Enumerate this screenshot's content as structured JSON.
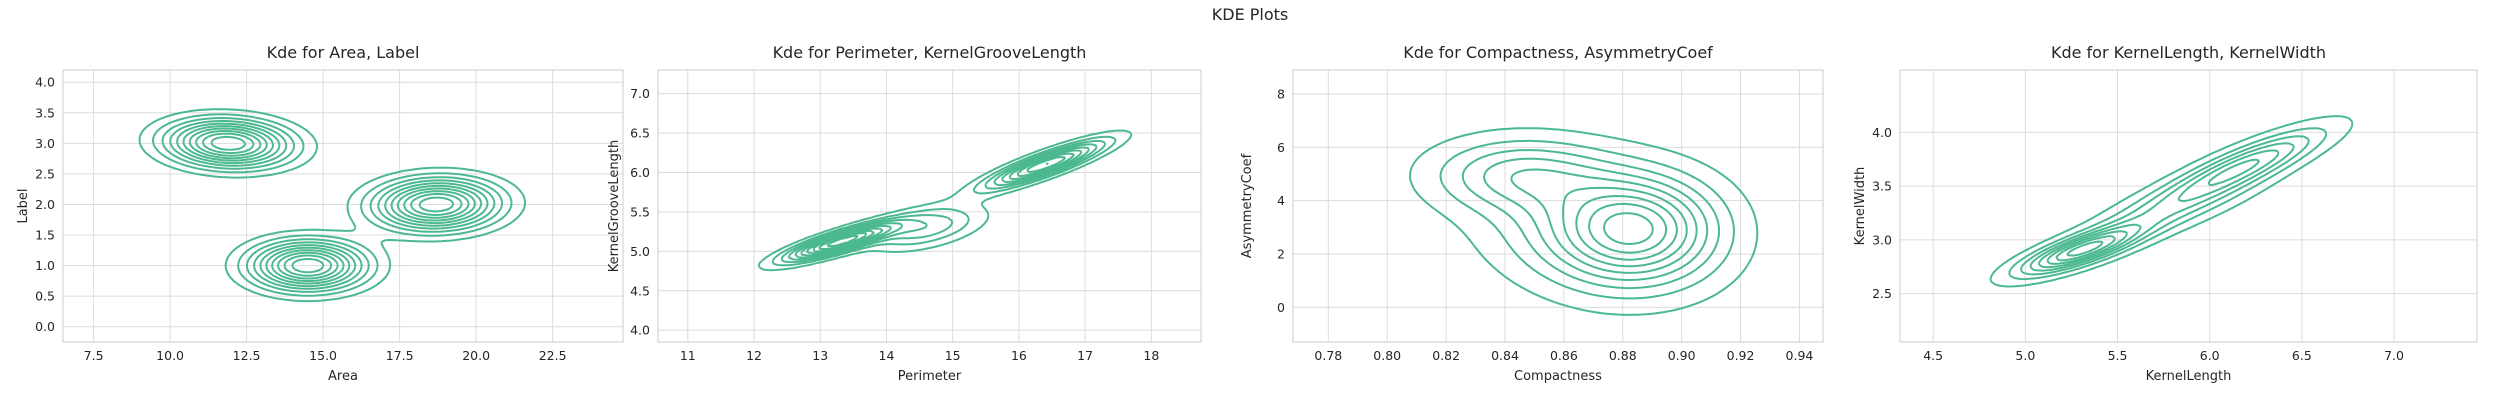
{
  "figure": {
    "title": "KDE Plots"
  },
  "style": {
    "line_color": "#4bb890"
  },
  "chart_data": [
    {
      "type": "kde_contour",
      "title": "Kde for Area, Label",
      "xlabel": "Area",
      "ylabel": "Label",
      "xlim": [
        6.5,
        24.8
      ],
      "ylim": [
        -0.25,
        4.2
      ],
      "xticks": [
        7.5,
        10.0,
        12.5,
        15.0,
        17.5,
        20.0,
        22.5
      ],
      "xtick_labels": [
        "7.5",
        "10.0",
        "12.5",
        "15.0",
        "17.5",
        "20.0",
        "22.5"
      ],
      "yticks": [
        0.0,
        0.5,
        1.0,
        1.5,
        2.0,
        2.5,
        3.0,
        3.5,
        4.0
      ],
      "ytick_labels": [
        "0.0",
        "0.5",
        "1.0",
        "1.5",
        "2.0",
        "2.5",
        "3.0",
        "3.5",
        "4.0"
      ],
      "grid": true,
      "components": [
        {
          "mx": 11.9,
          "my": 3.0,
          "sx": 1.35,
          "sy": 0.26,
          "rho": -0.1,
          "w": 1.0
        },
        {
          "mx": 14.5,
          "my": 1.0,
          "sx": 1.25,
          "sy": 0.27,
          "rho": 0.0,
          "w": 1.0
        },
        {
          "mx": 18.7,
          "my": 2.0,
          "sx": 1.35,
          "sy": 0.28,
          "rho": 0.05,
          "w": 1.0
        }
      ],
      "levels": 10,
      "min_level": 0.1
    },
    {
      "type": "kde_contour",
      "title": "Kde for Perimeter, KernelGrooveLength",
      "xlabel": "Perimeter",
      "ylabel": "KernelGrooveLength",
      "xlim": [
        10.55,
        18.75
      ],
      "ylim": [
        3.85,
        7.3
      ],
      "xticks": [
        11,
        12,
        13,
        14,
        15,
        16,
        17,
        18
      ],
      "xtick_labels": [
        "11",
        "12",
        "13",
        "14",
        "15",
        "16",
        "17",
        "18"
      ],
      "yticks": [
        4.0,
        4.5,
        5.0,
        5.5,
        6.0,
        6.5,
        7.0
      ],
      "ytick_labels": [
        "4.0",
        "4.5",
        "5.0",
        "5.5",
        "6.0",
        "6.5",
        "7.0"
      ],
      "grid": true,
      "components": [
        {
          "mx": 13.3,
          "my": 5.12,
          "sx": 0.55,
          "sy": 0.16,
          "rho": 0.85,
          "w": 1.0
        },
        {
          "mx": 16.4,
          "my": 6.1,
          "sx": 0.6,
          "sy": 0.2,
          "rho": 0.88,
          "w": 0.85
        },
        {
          "mx": 14.6,
          "my": 5.3,
          "sx": 0.55,
          "sy": 0.18,
          "rho": 0.5,
          "w": 0.35
        }
      ],
      "levels": 10,
      "min_level": 0.08
    },
    {
      "type": "kde_contour",
      "title": "Kde for Compactness, AsymmetryCoef",
      "xlabel": "Compactness",
      "ylabel": "AsymmetryCoef",
      "xlim": [
        0.768,
        0.948
      ],
      "ylim": [
        -1.3,
        8.9
      ],
      "xticks": [
        0.78,
        0.8,
        0.82,
        0.84,
        0.86,
        0.88,
        0.9,
        0.92,
        0.94
      ],
      "xtick_labels": [
        "0.78",
        "0.80",
        "0.82",
        "0.84",
        "0.86",
        "0.88",
        "0.90",
        "0.92",
        "0.94"
      ],
      "yticks": [
        0,
        2,
        4,
        6,
        8
      ],
      "ytick_labels": [
        "0",
        "2",
        "4",
        "6",
        "8"
      ],
      "grid": true,
      "components": [
        {
          "mx": 0.885,
          "my": 3.0,
          "sx": 0.018,
          "sy": 1.3,
          "rho": 0.0,
          "w": 1.0
        },
        {
          "mx": 0.845,
          "my": 5.0,
          "sx": 0.02,
          "sy": 0.9,
          "rho": 0.0,
          "w": 0.55
        },
        {
          "mx": 0.87,
          "my": 2.8,
          "sx": 0.025,
          "sy": 1.6,
          "rho": -0.2,
          "w": 0.45
        }
      ],
      "levels": 9,
      "min_level": 0.08
    },
    {
      "type": "kde_contour",
      "title": "Kde for KernelLength, KernelWidth",
      "xlabel": "KernelLength",
      "ylabel": "KernelWidth",
      "xlim": [
        4.32,
        7.45
      ],
      "ylim": [
        2.05,
        4.58
      ],
      "xticks": [
        4.5,
        5.0,
        5.5,
        6.0,
        6.5,
        7.0
      ],
      "xtick_labels": [
        "4.5",
        "5.0",
        "5.5",
        "6.0",
        "6.5",
        "7.0"
      ],
      "yticks": [
        2.5,
        3.0,
        3.5,
        4.0
      ],
      "ytick_labels": [
        "2.5",
        "3.0",
        "3.5",
        "4.0"
      ],
      "grid": true,
      "components": [
        {
          "mx": 5.3,
          "my": 2.9,
          "sx": 0.22,
          "sy": 0.15,
          "rho": 0.8,
          "w": 1.0
        },
        {
          "mx": 6.2,
          "my": 3.7,
          "sx": 0.28,
          "sy": 0.22,
          "rho": 0.85,
          "w": 0.7
        },
        {
          "mx": 5.8,
          "my": 3.3,
          "sx": 0.3,
          "sy": 0.22,
          "rho": 0.8,
          "w": 0.4
        }
      ],
      "levels": 8,
      "min_level": 0.08
    }
  ]
}
